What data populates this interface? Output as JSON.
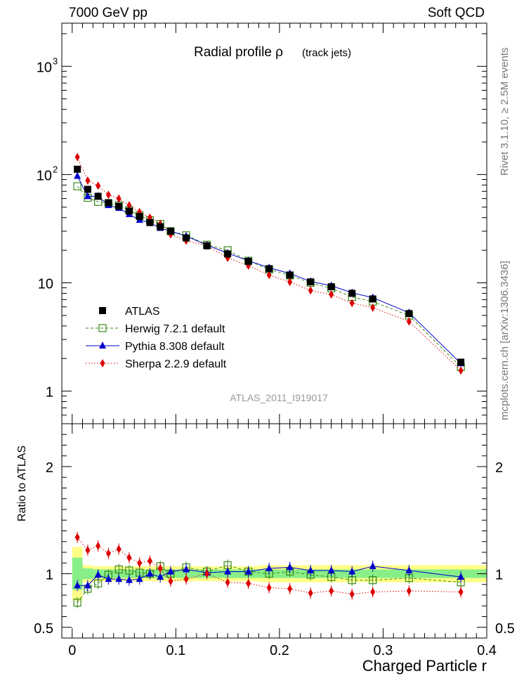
{
  "header": {
    "left": "7000 GeV pp",
    "right": "Soft QCD"
  },
  "side_labels": {
    "rivet": "Rivet 3.1.10, ≥ 2.5M events",
    "mcplots": "mcplots.cern.ch [arXiv:1306.3436]"
  },
  "chart_data": [
    {
      "type": "scatter",
      "panel": "main",
      "title": "Radial profile  ρ",
      "title_small": "(track jets)",
      "watermark": "ATLAS_2011_I919017",
      "y_scale": "log",
      "ylim": [
        0.5,
        2500
      ],
      "xlim": [
        -0.01,
        0.4
      ],
      "y_ticks": [
        "1",
        "10",
        "10^2",
        "10^3"
      ],
      "legend_placement": "lower-left",
      "x": [
        0.005,
        0.015,
        0.025,
        0.035,
        0.045,
        0.055,
        0.065,
        0.075,
        0.085,
        0.095,
        0.11,
        0.13,
        0.15,
        0.17,
        0.19,
        0.21,
        0.23,
        0.25,
        0.27,
        0.29,
        0.325,
        0.375
      ],
      "series": [
        {
          "name": "ATLAS",
          "color": "#000000",
          "marker": "square",
          "values": [
            112,
            73,
            63,
            55,
            51,
            46,
            41,
            36,
            33,
            30,
            26,
            22,
            18.5,
            15.8,
            13.5,
            11.8,
            10.2,
            9.2,
            8.0,
            7.1,
            5.2,
            1.85
          ]
        },
        {
          "name": "Herwig 7.2.1 default",
          "color": "#3a8a1a",
          "marker": "open-square",
          "line": "dashed",
          "values": [
            78,
            61,
            56,
            54,
            52,
            47,
            42,
            38,
            35,
            30,
            27.5,
            22.5,
            20,
            16,
            13.3,
            11.7,
            10,
            8.9,
            7.4,
            6.7,
            5.0,
            1.67
          ]
        },
        {
          "name": "Pythia 8.308 default",
          "color": "#0000cc",
          "marker": "triangle",
          "line": "solid",
          "values": [
            97,
            63,
            63,
            52,
            49,
            43,
            38,
            36,
            32,
            30,
            27,
            22.3,
            18.8,
            16,
            13.8,
            12.2,
            10.3,
            9.4,
            8.1,
            7.3,
            5.3,
            1.8
          ]
        },
        {
          "name": "Sherpa 2.2.9 default",
          "color": "#dd0000",
          "marker": "diamond",
          "line": "dotted",
          "values": [
            145,
            88,
            79,
            65,
            60,
            52,
            45,
            40,
            35,
            28,
            24.5,
            22,
            17,
            14.4,
            11.8,
            10.2,
            8.5,
            7.8,
            6.5,
            5.9,
            4.4,
            1.55
          ]
        }
      ]
    },
    {
      "type": "scatter",
      "panel": "ratio",
      "ylabel": "Ratio to ATLAS",
      "xlabel": "Charged Particle r",
      "ylim": [
        0.4,
        2.4
      ],
      "xlim": [
        -0.01,
        0.4
      ],
      "x_ticks": [
        "0",
        "0.1",
        "0.2",
        "0.3",
        "0.4"
      ],
      "y_ticks": [
        "0.5",
        "1",
        "2"
      ],
      "x": [
        0.005,
        0.015,
        0.025,
        0.035,
        0.045,
        0.055,
        0.065,
        0.075,
        0.085,
        0.095,
        0.11,
        0.13,
        0.15,
        0.17,
        0.19,
        0.21,
        0.23,
        0.25,
        0.27,
        0.29,
        0.325,
        0.375
      ],
      "band_edges": [
        0,
        0.01,
        0.02,
        0.03,
        0.04,
        0.05,
        0.06,
        0.07,
        0.08,
        0.09,
        0.1,
        0.12,
        0.14,
        0.16,
        0.18,
        0.2,
        0.22,
        0.24,
        0.26,
        0.28,
        0.3,
        0.35,
        0.4
      ],
      "band_stat": [
        0.15,
        0.05,
        0.04,
        0.04,
        0.04,
        0.04,
        0.04,
        0.04,
        0.04,
        0.04,
        0.04,
        0.04,
        0.04,
        0.04,
        0.04,
        0.04,
        0.04,
        0.04,
        0.04,
        0.04,
        0.04,
        0.04
      ],
      "band_total": [
        0.25,
        0.08,
        0.07,
        0.07,
        0.07,
        0.07,
        0.07,
        0.07,
        0.07,
        0.07,
        0.07,
        0.07,
        0.07,
        0.07,
        0.08,
        0.08,
        0.08,
        0.08,
        0.08,
        0.08,
        0.08,
        0.08
      ],
      "series": [
        {
          "name": "Herwig 7.2.1 default",
          "color": "#3a8a1a",
          "marker": "open-square",
          "line": "dashed",
          "values": [
            0.73,
            0.86,
            0.91,
            0.99,
            1.04,
            1.03,
            1.01,
            1.0,
            1.07,
            1.0,
            1.06,
            1.02,
            1.08,
            1.02,
            1.0,
            1.02,
            0.99,
            0.97,
            0.94,
            0.94,
            0.96,
            0.92
          ]
        },
        {
          "name": "Pythia 8.308 default",
          "color": "#0000cc",
          "marker": "triangle",
          "line": "solid",
          "values": [
            0.89,
            0.89,
            0.99,
            0.95,
            0.95,
            0.94,
            0.95,
            1.0,
            0.97,
            1.02,
            1.04,
            1.01,
            1.02,
            1.02,
            1.05,
            1.06,
            1.03,
            1.03,
            1.02,
            1.07,
            1.03,
            0.97
          ]
        },
        {
          "name": "Sherpa 2.2.9 default",
          "color": "#dd0000",
          "marker": "diamond",
          "line": "dotted",
          "values": [
            1.34,
            1.22,
            1.26,
            1.19,
            1.23,
            1.15,
            1.1,
            1.12,
            1.05,
            0.93,
            0.95,
            1.0,
            0.92,
            0.91,
            0.87,
            0.86,
            0.82,
            0.84,
            0.81,
            0.83,
            0.84,
            0.83
          ]
        }
      ]
    }
  ]
}
